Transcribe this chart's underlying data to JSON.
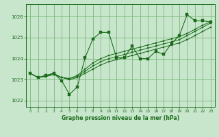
{
  "title": "Graphe pression niveau de la mer (hPa)",
  "background_color": "#c8e6cc",
  "grid_color": "#7ab87a",
  "line_color": "#1a6b1a",
  "xlim": [
    -0.5,
    23.5
  ],
  "ylim": [
    1021.7,
    1026.6
  ],
  "yticks": [
    1022,
    1023,
    1024,
    1025,
    1026
  ],
  "xticks": [
    0,
    1,
    2,
    3,
    4,
    5,
    6,
    7,
    8,
    9,
    10,
    11,
    12,
    13,
    14,
    15,
    16,
    17,
    18,
    19,
    20,
    21,
    22,
    23
  ],
  "y_zigzag": [
    1023.3,
    1023.1,
    1023.2,
    1023.3,
    1022.95,
    1022.3,
    1022.65,
    1024.05,
    1024.95,
    1025.25,
    1025.25,
    1024.05,
    1024.05,
    1024.6,
    1024.0,
    1024.0,
    1024.35,
    1024.2,
    1024.72,
    1025.1,
    1026.1,
    1025.8,
    1025.8,
    1025.75
  ],
  "y_line1": [
    1023.3,
    1023.1,
    1023.15,
    1023.25,
    1023.1,
    1023.0,
    1023.1,
    1023.3,
    1023.5,
    1023.7,
    1023.85,
    1023.95,
    1024.05,
    1024.15,
    1024.25,
    1024.35,
    1024.45,
    1024.55,
    1024.65,
    1024.75,
    1024.9,
    1025.1,
    1025.3,
    1025.5
  ],
  "y_line2": [
    1023.3,
    1023.1,
    1023.15,
    1023.25,
    1023.1,
    1023.05,
    1023.15,
    1023.4,
    1023.65,
    1023.85,
    1024.0,
    1024.1,
    1024.2,
    1024.3,
    1024.4,
    1024.5,
    1024.6,
    1024.7,
    1024.8,
    1024.9,
    1025.1,
    1025.3,
    1025.5,
    1025.7
  ],
  "y_line3": [
    1023.3,
    1023.1,
    1023.2,
    1023.3,
    1023.1,
    1023.05,
    1023.2,
    1023.5,
    1023.8,
    1024.0,
    1024.15,
    1024.25,
    1024.35,
    1024.45,
    1024.55,
    1024.65,
    1024.75,
    1024.85,
    1024.95,
    1025.05,
    1025.2,
    1025.4,
    1025.6,
    1025.75
  ]
}
